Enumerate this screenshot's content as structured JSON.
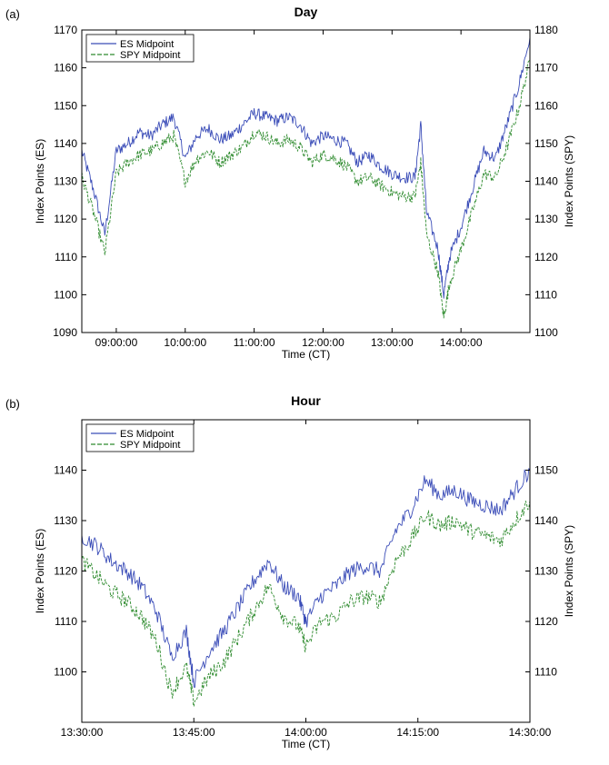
{
  "chart_data": [
    {
      "type": "line",
      "panel_label": "(a)",
      "title": "Day",
      "xlabel": "Time (CT)",
      "ylabel": "Index Points (ES)",
      "ylabel_right": "Index Points (SPY)",
      "x_ticks": [
        "09:00:00",
        "10:00:00",
        "11:00:00",
        "12:00:00",
        "13:00:00",
        "14:00:00"
      ],
      "x_range_minutes": [
        "08:30",
        "15:00"
      ],
      "ylim": [
        1090,
        1170
      ],
      "ylim_right": [
        1100,
        1180
      ],
      "y_ticks": [
        1090,
        1100,
        1110,
        1120,
        1130,
        1140,
        1150,
        1160,
        1170
      ],
      "y_ticks_right": [
        1100,
        1110,
        1120,
        1130,
        1140,
        1150,
        1160,
        1170,
        1180
      ],
      "legend_position": "top-left",
      "x": [
        "08:30",
        "08:40",
        "08:50",
        "09:00",
        "09:10",
        "09:20",
        "09:30",
        "09:40",
        "09:50",
        "10:00",
        "10:10",
        "10:20",
        "10:30",
        "10:40",
        "10:50",
        "11:00",
        "11:10",
        "11:20",
        "11:30",
        "11:40",
        "11:50",
        "12:00",
        "12:10",
        "12:20",
        "12:30",
        "12:40",
        "12:50",
        "13:00",
        "13:10",
        "13:20",
        "13:25",
        "13:30",
        "13:40",
        "13:45",
        "13:50",
        "14:00",
        "14:10",
        "14:20",
        "14:30",
        "14:40",
        "14:50",
        "15:00"
      ],
      "series": [
        {
          "name": "ES Midpoint",
          "color": "#3b4db8",
          "style": "solid",
          "values": [
            1138,
            1128,
            1116,
            1138,
            1140,
            1143,
            1142,
            1145,
            1147,
            1136,
            1142,
            1144,
            1141,
            1142,
            1145,
            1148,
            1147,
            1146,
            1147,
            1145,
            1140,
            1142,
            1141,
            1140,
            1135,
            1137,
            1134,
            1132,
            1131,
            1131,
            1145,
            1122,
            1112,
            1100,
            1110,
            1118,
            1128,
            1138,
            1136,
            1145,
            1155,
            1168
          ]
        },
        {
          "name": "SPY Midpoint",
          "color": "#2e8b2e",
          "style": "dashed",
          "values": [
            1131,
            1122,
            1111,
            1132,
            1135,
            1137,
            1138,
            1140,
            1142,
            1130,
            1136,
            1138,
            1135,
            1137,
            1139,
            1143,
            1142,
            1140,
            1141,
            1139,
            1135,
            1137,
            1136,
            1134,
            1130,
            1131,
            1129,
            1127,
            1126,
            1126,
            1135,
            1116,
            1106,
            1094,
            1103,
            1112,
            1122,
            1132,
            1131,
            1139,
            1149,
            1162
          ]
        }
      ]
    },
    {
      "type": "line",
      "panel_label": "(b)",
      "title": "Hour",
      "xlabel": "Time (CT)",
      "ylabel": "Index Points (ES)",
      "ylabel_right": "Index Points (SPY)",
      "x_ticks": [
        "13:30:00",
        "13:45:00",
        "14:00:00",
        "14:15:00",
        "14:30:00"
      ],
      "x_range_minutes": [
        "13:30",
        "14:30"
      ],
      "ylim": [
        1090,
        1150
      ],
      "ylim_right": [
        1100,
        1160
      ],
      "y_ticks": [
        1100,
        1110,
        1120,
        1130,
        1140
      ],
      "y_ticks_right": [
        1110,
        1120,
        1130,
        1140,
        1150
      ],
      "legend_position": "top-left",
      "x": [
        "13:30",
        "13:32",
        "13:34",
        "13:36",
        "13:38",
        "13:40",
        "13:42",
        "13:44",
        "13:45",
        "13:47",
        "13:49",
        "13:51",
        "13:53",
        "13:55",
        "13:57",
        "13:59",
        "14:00",
        "14:02",
        "14:04",
        "14:06",
        "14:08",
        "14:10",
        "14:12",
        "14:14",
        "14:16",
        "14:18",
        "14:20",
        "14:22",
        "14:24",
        "14:26",
        "14:28",
        "14:30"
      ],
      "series": [
        {
          "name": "ES Midpoint",
          "color": "#3b4db8",
          "style": "solid",
          "values": [
            1127,
            1125,
            1122,
            1120,
            1117,
            1112,
            1103,
            1108,
            1098,
            1104,
            1108,
            1113,
            1118,
            1122,
            1117,
            1115,
            1110,
            1115,
            1117,
            1120,
            1121,
            1120,
            1128,
            1132,
            1138,
            1135,
            1136,
            1134,
            1133,
            1132,
            1136,
            1140
          ]
        },
        {
          "name": "SPY Midpoint",
          "color": "#2e8b2e",
          "style": "dashed",
          "values": [
            1122,
            1119,
            1116,
            1114,
            1111,
            1106,
            1096,
            1101,
            1094,
            1099,
            1102,
            1107,
            1112,
            1117,
            1111,
            1109,
            1105,
            1110,
            1111,
            1114,
            1115,
            1114,
            1122,
            1126,
            1131,
            1129,
            1130,
            1128,
            1127,
            1126,
            1130,
            1134
          ]
        }
      ]
    }
  ]
}
